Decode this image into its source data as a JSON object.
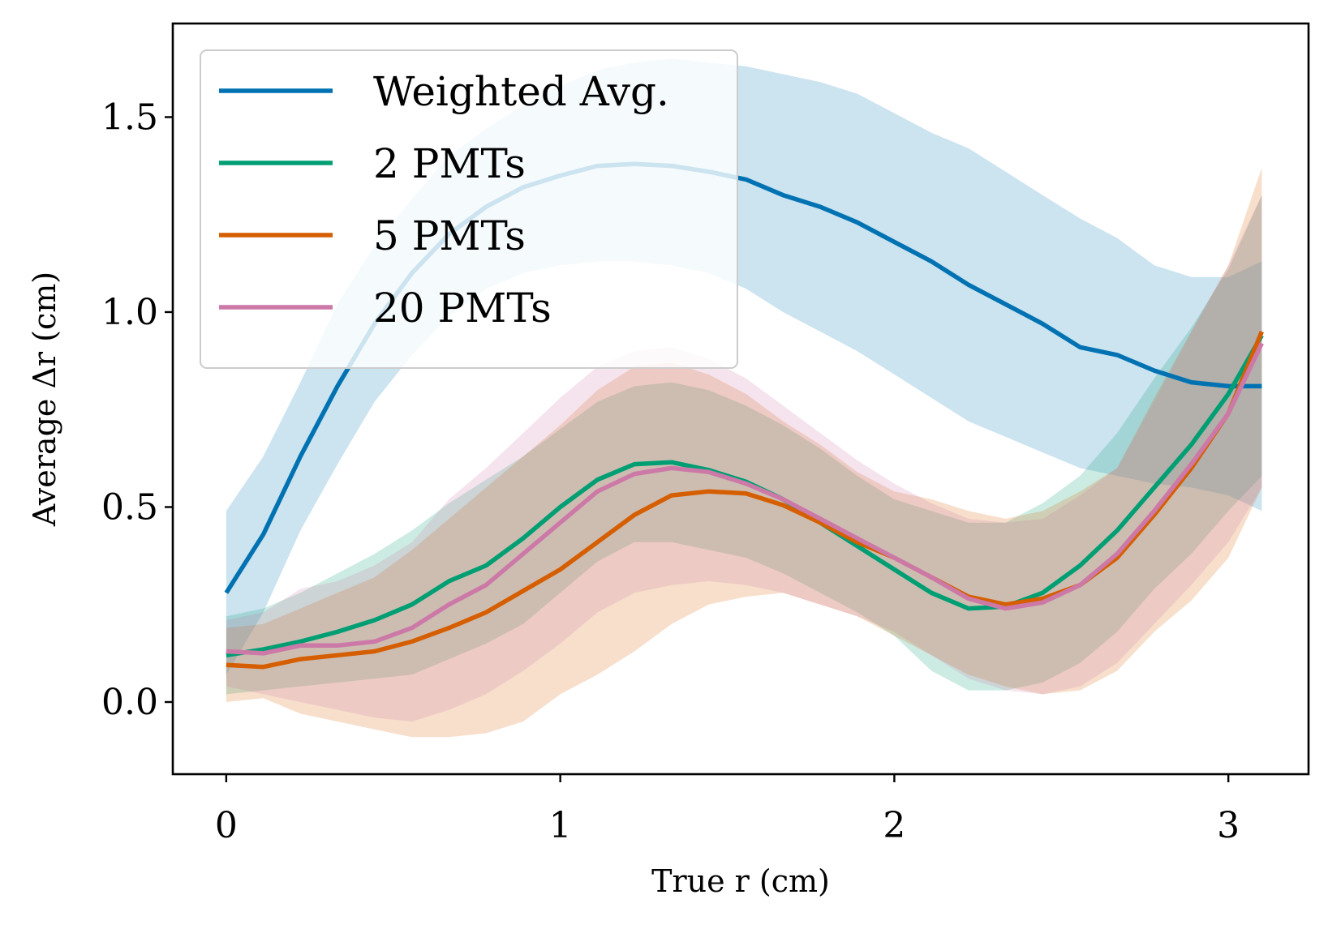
{
  "chart_data": {
    "type": "line",
    "xlabel": "True r (cm)",
    "ylabel": "Average Δr (cm)",
    "xlim": [
      -0.16,
      3.24
    ],
    "ylim": [
      -0.185,
      1.74
    ],
    "xticks": [
      0,
      1,
      2,
      3
    ],
    "xtick_labels": [
      "0",
      "1",
      "2",
      "3"
    ],
    "yticks": [
      0.0,
      0.5,
      1.0,
      1.5
    ],
    "ytick_labels": [
      "0.0",
      "0.5",
      "1.0",
      "1.5"
    ],
    "grid": false,
    "legend_position": "top-left",
    "x": [
      0.0,
      0.111,
      0.222,
      0.333,
      0.444,
      0.556,
      0.667,
      0.778,
      0.889,
      1.0,
      1.111,
      1.222,
      1.333,
      1.444,
      1.556,
      1.667,
      1.778,
      1.889,
      2.0,
      2.111,
      2.222,
      2.333,
      2.444,
      2.556,
      2.667,
      2.778,
      2.889,
      3.0,
      3.1
    ],
    "series": [
      {
        "name": "Weighted Avg.",
        "color": "#0072b2",
        "values": [
          0.28,
          0.43,
          0.63,
          0.81,
          0.97,
          1.1,
          1.2,
          1.27,
          1.32,
          1.35,
          1.375,
          1.38,
          1.375,
          1.36,
          1.34,
          1.3,
          1.27,
          1.23,
          1.18,
          1.13,
          1.07,
          1.02,
          0.97,
          0.91,
          0.89,
          0.85,
          0.82,
          0.81,
          0.81
        ],
        "upper": [
          0.49,
          0.63,
          0.82,
          1.02,
          1.17,
          1.29,
          1.4,
          1.47,
          1.53,
          1.58,
          1.62,
          1.64,
          1.65,
          1.64,
          1.63,
          1.61,
          1.59,
          1.56,
          1.51,
          1.46,
          1.42,
          1.36,
          1.3,
          1.24,
          1.19,
          1.12,
          1.09,
          1.09,
          1.13
        ],
        "lower": [
          0.07,
          0.23,
          0.44,
          0.61,
          0.77,
          0.89,
          0.99,
          1.06,
          1.1,
          1.12,
          1.13,
          1.13,
          1.12,
          1.1,
          1.06,
          1.0,
          0.95,
          0.9,
          0.84,
          0.78,
          0.72,
          0.68,
          0.64,
          0.6,
          0.58,
          0.56,
          0.55,
          0.53,
          0.49
        ]
      },
      {
        "name": "2 PMTs",
        "color": "#009e73",
        "values": [
          0.12,
          0.135,
          0.155,
          0.18,
          0.21,
          0.25,
          0.31,
          0.35,
          0.42,
          0.5,
          0.57,
          0.61,
          0.615,
          0.595,
          0.565,
          0.52,
          0.46,
          0.4,
          0.34,
          0.28,
          0.24,
          0.245,
          0.28,
          0.35,
          0.44,
          0.55,
          0.66,
          0.79,
          0.94
        ],
        "upper": [
          0.22,
          0.24,
          0.28,
          0.33,
          0.38,
          0.44,
          0.51,
          0.57,
          0.63,
          0.7,
          0.77,
          0.81,
          0.82,
          0.8,
          0.76,
          0.71,
          0.65,
          0.58,
          0.52,
          0.49,
          0.46,
          0.46,
          0.51,
          0.58,
          0.69,
          0.83,
          0.96,
          1.11,
          1.3
        ],
        "lower": [
          0.02,
          0.03,
          0.04,
          0.05,
          0.06,
          0.07,
          0.11,
          0.15,
          0.2,
          0.28,
          0.36,
          0.41,
          0.41,
          0.39,
          0.37,
          0.33,
          0.28,
          0.23,
          0.17,
          0.08,
          0.03,
          0.03,
          0.05,
          0.1,
          0.18,
          0.29,
          0.38,
          0.49,
          0.58
        ]
      },
      {
        "name": "5 PMTs",
        "color": "#d55e00",
        "values": [
          0.095,
          0.09,
          0.11,
          0.12,
          0.13,
          0.155,
          0.19,
          0.23,
          0.285,
          0.34,
          0.41,
          0.48,
          0.53,
          0.54,
          0.535,
          0.505,
          0.46,
          0.41,
          0.37,
          0.32,
          0.27,
          0.25,
          0.265,
          0.3,
          0.37,
          0.48,
          0.6,
          0.74,
          0.95
        ],
        "upper": [
          0.19,
          0.2,
          0.24,
          0.28,
          0.32,
          0.39,
          0.47,
          0.55,
          0.63,
          0.71,
          0.8,
          0.86,
          0.87,
          0.84,
          0.79,
          0.72,
          0.66,
          0.59,
          0.54,
          0.52,
          0.49,
          0.47,
          0.49,
          0.54,
          0.6,
          0.78,
          0.95,
          1.12,
          1.37
        ],
        "lower": [
          0.0,
          0.01,
          -0.03,
          -0.05,
          -0.07,
          -0.09,
          -0.09,
          -0.08,
          -0.05,
          0.02,
          0.07,
          0.13,
          0.2,
          0.25,
          0.27,
          0.28,
          0.25,
          0.22,
          0.17,
          0.12,
          0.07,
          0.04,
          0.02,
          0.03,
          0.08,
          0.18,
          0.26,
          0.37,
          0.55
        ]
      },
      {
        "name": "20 PMTs",
        "color": "#cc79a7",
        "values": [
          0.13,
          0.125,
          0.145,
          0.145,
          0.155,
          0.19,
          0.25,
          0.3,
          0.38,
          0.46,
          0.54,
          0.585,
          0.6,
          0.59,
          0.56,
          0.52,
          0.47,
          0.42,
          0.37,
          0.32,
          0.265,
          0.24,
          0.255,
          0.3,
          0.38,
          0.49,
          0.61,
          0.74,
          0.92
        ],
        "upper": [
          0.21,
          0.23,
          0.29,
          0.31,
          0.35,
          0.41,
          0.52,
          0.6,
          0.69,
          0.78,
          0.86,
          0.9,
          0.91,
          0.88,
          0.83,
          0.76,
          0.69,
          0.62,
          0.56,
          0.51,
          0.47,
          0.46,
          0.47,
          0.53,
          0.6,
          0.77,
          0.95,
          1.12,
          1.3
        ],
        "lower": [
          0.04,
          0.02,
          0.0,
          -0.02,
          -0.04,
          -0.05,
          -0.02,
          0.02,
          0.08,
          0.15,
          0.23,
          0.28,
          0.3,
          0.31,
          0.3,
          0.28,
          0.25,
          0.22,
          0.18,
          0.12,
          0.06,
          0.03,
          0.02,
          0.04,
          0.1,
          0.2,
          0.3,
          0.41,
          0.55
        ]
      }
    ]
  }
}
